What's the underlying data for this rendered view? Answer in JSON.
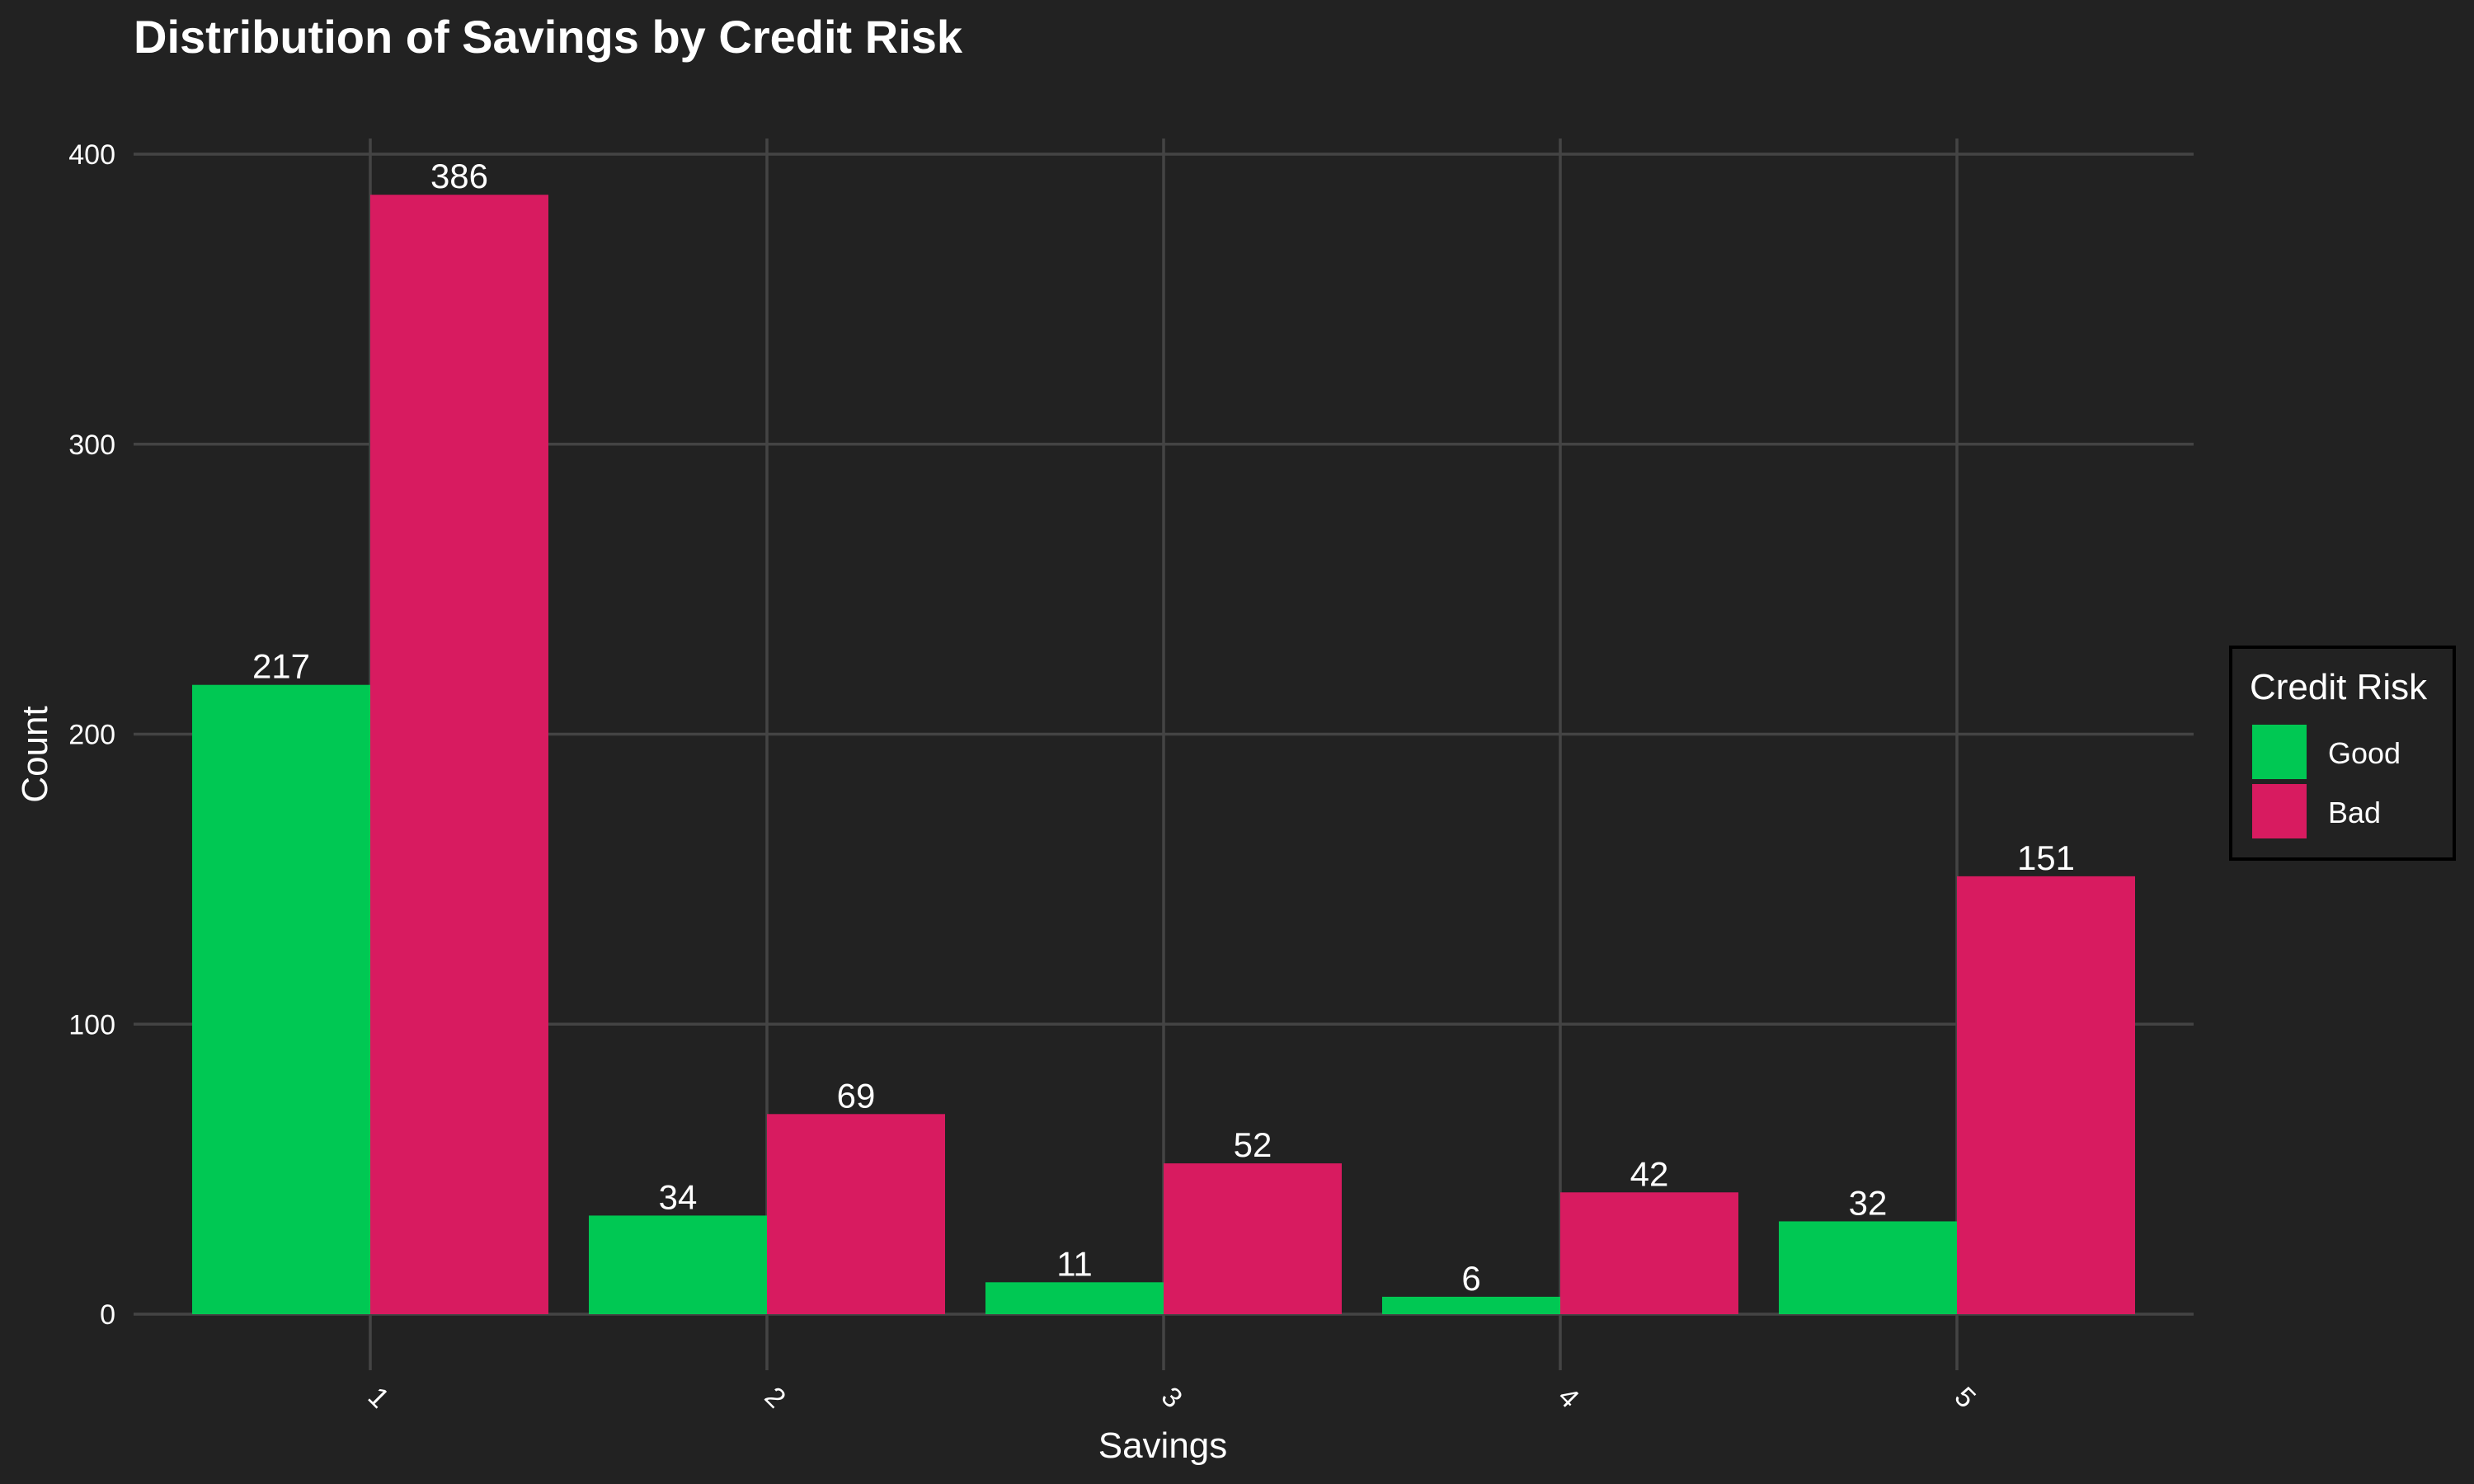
{
  "chart_data": {
    "type": "bar",
    "title": "Distribution of Savings by Credit Risk",
    "xlabel": "Savings",
    "ylabel": "Count",
    "categories": [
      "1",
      "2",
      "3",
      "4",
      "5"
    ],
    "series": [
      {
        "name": "Good",
        "values": [
          217,
          34,
          11,
          6,
          32
        ],
        "color": "#00c853"
      },
      {
        "name": "Bad",
        "values": [
          386,
          69,
          52,
          42,
          151
        ],
        "color": "#d81b60"
      }
    ],
    "ylim": [
      0,
      400
    ],
    "yticks": [
      "0",
      "100",
      "200",
      "300",
      "400"
    ],
    "legend": {
      "title": "Credit Risk",
      "placement": "right"
    },
    "grid": true
  },
  "colors": {
    "background": "#222222",
    "grid": "#444444",
    "text": "#ffffff"
  }
}
